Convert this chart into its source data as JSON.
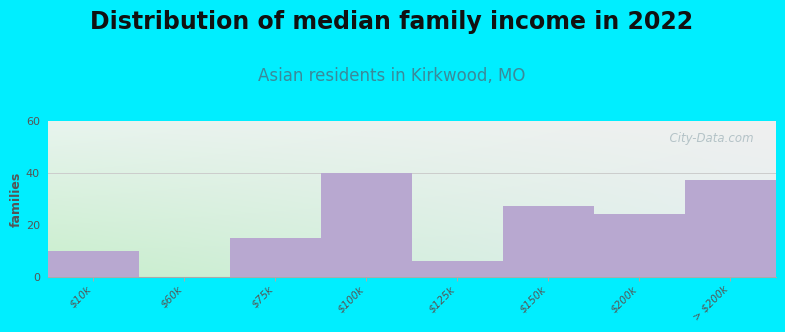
{
  "title": "Distribution of median family income in 2022",
  "subtitle": "Asian residents in Kirkwood, MO",
  "tick_labels": [
    "$10k",
    "$60k",
    "$75k",
    "$100k",
    "$125k",
    "$150k",
    "$200k",
    "> $200k"
  ],
  "values": [
    10,
    0,
    15,
    40,
    6,
    27,
    24,
    37
  ],
  "bar_color": "#b8a8d0",
  "background_color": "#00eeff",
  "ylabel": "families",
  "ylim": [
    0,
    60
  ],
  "yticks": [
    0,
    20,
    40,
    60
  ],
  "title_fontsize": 17,
  "subtitle_fontsize": 12,
  "subtitle_color": "#3a8a9a",
  "watermark": "  City-Data.com",
  "watermark_color": "#aabbc0"
}
